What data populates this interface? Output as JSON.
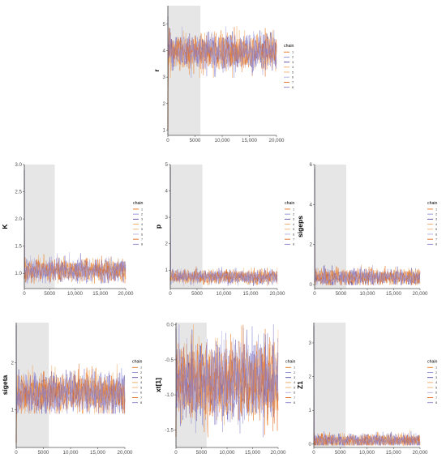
{
  "figure": {
    "legend_title": "chain",
    "legend_labels": [
      "1",
      "2",
      "3",
      "4",
      "5",
      "6",
      "7",
      "8"
    ],
    "chain_colors": [
      "#e8761b",
      "#8e8ed6",
      "#5a4aa8",
      "#f0a860",
      "#f2b271",
      "#b3aee0",
      "#e0671a",
      "#8b80c9"
    ],
    "warmup_shade_color": "#e6e6e6",
    "x_tick_labels": [
      "0",
      "5000",
      "10,000",
      "15,000",
      "20,000"
    ]
  },
  "chart_data": [
    {
      "type": "line",
      "ylabel": "r",
      "warmup_x_range": [
        0,
        6000
      ],
      "x_range": [
        0,
        20000
      ],
      "ylim": [
        0.8,
        5.7
      ],
      "y_ticks": [
        1,
        2,
        3,
        4,
        5
      ],
      "y_tick_labels": [
        "1",
        "2",
        "3",
        "4",
        "5"
      ],
      "series_center": 3.95,
      "series_band": [
        3.1,
        4.8
      ],
      "initial_spike": [
        1.0,
        5.3
      ],
      "grid": false,
      "legend": "right",
      "series": [
        {
          "name": "1"
        },
        {
          "name": "2"
        },
        {
          "name": "3"
        },
        {
          "name": "4"
        },
        {
          "name": "5"
        },
        {
          "name": "6"
        },
        {
          "name": "7"
        },
        {
          "name": "8"
        }
      ]
    },
    {
      "type": "line",
      "ylabel": "K",
      "warmup_x_range": [
        0,
        6000
      ],
      "x_range": [
        0,
        20000
      ],
      "ylim": [
        0.72,
        3.0
      ],
      "y_ticks": [
        1.0,
        1.5,
        2.0,
        2.5,
        3.0
      ],
      "y_tick_labels": [
        "1.0",
        "1.5",
        "2.0",
        "2.5",
        "3.0"
      ],
      "series_center": 1.05,
      "series_band": [
        0.85,
        1.35
      ],
      "initial_spike": [
        0.9,
        2.9
      ],
      "grid": false,
      "legend": "right",
      "series": [
        {
          "name": "1"
        },
        {
          "name": "2"
        },
        {
          "name": "3"
        },
        {
          "name": "4"
        },
        {
          "name": "5"
        },
        {
          "name": "6"
        },
        {
          "name": "7"
        },
        {
          "name": "8"
        }
      ]
    },
    {
      "type": "line",
      "ylabel": "p",
      "warmup_x_range": [
        0,
        6000
      ],
      "x_range": [
        0,
        20000
      ],
      "ylim": [
        0.3,
        5.0
      ],
      "y_ticks": [
        1,
        2,
        3,
        4,
        5
      ],
      "y_tick_labels": [
        "1",
        "2",
        "3",
        "4",
        "5"
      ],
      "series_center": 0.75,
      "series_band": [
        0.45,
        1.1
      ],
      "initial_spike": [
        0.6,
        4.9
      ],
      "grid": false,
      "legend": "right",
      "series": [
        {
          "name": "1"
        },
        {
          "name": "2"
        },
        {
          "name": "3"
        },
        {
          "name": "4"
        },
        {
          "name": "5"
        },
        {
          "name": "6"
        },
        {
          "name": "7"
        },
        {
          "name": "8"
        }
      ]
    },
    {
      "type": "line",
      "ylabel": "sigeps",
      "warmup_x_range": [
        0,
        6000
      ],
      "x_range": [
        0,
        20000
      ],
      "ylim": [
        -0.2,
        6.0
      ],
      "y_ticks": [
        0,
        2,
        4,
        6
      ],
      "y_tick_labels": [
        "0",
        "2",
        "4",
        "6"
      ],
      "series_center": 0.35,
      "series_band": [
        0.05,
        1.1
      ],
      "initial_spike": [
        0.1,
        5.8
      ],
      "grid": false,
      "legend": "right",
      "series": [
        {
          "name": "1"
        },
        {
          "name": "2"
        },
        {
          "name": "3"
        },
        {
          "name": "4"
        },
        {
          "name": "5"
        },
        {
          "name": "6"
        },
        {
          "name": "7"
        },
        {
          "name": "8"
        }
      ]
    },
    {
      "type": "line",
      "ylabel": "sigeta",
      "warmup_x_range": [
        0,
        6000
      ],
      "x_range": [
        0,
        20000
      ],
      "ylim": [
        0.2,
        2.85
      ],
      "y_ticks": [
        1,
        2
      ],
      "y_tick_labels": [
        "1",
        "2"
      ],
      "series_center": 1.35,
      "series_band": [
        1.0,
        2.1
      ],
      "initial_spike": [
        0.3,
        2.8
      ],
      "grid": false,
      "legend": "right",
      "series": [
        {
          "name": "1"
        },
        {
          "name": "2"
        },
        {
          "name": "3"
        },
        {
          "name": "4"
        },
        {
          "name": "5"
        },
        {
          "name": "6"
        },
        {
          "name": "7"
        },
        {
          "name": "8"
        }
      ]
    },
    {
      "type": "line",
      "ylabel": "xt[1]",
      "warmup_x_range": [
        0,
        6000
      ],
      "x_range": [
        0,
        20000
      ],
      "ylim": [
        -1.75,
        0.03
      ],
      "y_ticks": [
        -1.5,
        -1.0,
        -0.5,
        0.0
      ],
      "y_tick_labels": [
        "-1.5",
        "-1.0",
        "-0.5",
        "0.0"
      ],
      "series_center": -0.8,
      "series_band": [
        -1.5,
        -0.1
      ],
      "initial_spike": [
        -1.6,
        -0.05
      ],
      "grid": false,
      "legend": "right",
      "series": [
        {
          "name": "1"
        },
        {
          "name": "2"
        },
        {
          "name": "3"
        },
        {
          "name": "4"
        },
        {
          "name": "5"
        },
        {
          "name": "6"
        },
        {
          "name": "7"
        },
        {
          "name": "8"
        }
      ]
    },
    {
      "type": "line",
      "ylabel": "Z1",
      "warmup_x_range": [
        0,
        6000
      ],
      "x_range": [
        0,
        20000
      ],
      "ylim": [
        -0.1,
        3.6
      ],
      "y_ticks": [
        0,
        1,
        2,
        3
      ],
      "y_tick_labels": [
        "0",
        "1",
        "2",
        "3"
      ],
      "series_center": 0.1,
      "series_band": [
        0.0,
        0.5
      ],
      "initial_spike": [
        0.0,
        3.5
      ],
      "grid": false,
      "legend": "right",
      "series": [
        {
          "name": "1"
        },
        {
          "name": "2"
        },
        {
          "name": "3"
        },
        {
          "name": "4"
        },
        {
          "name": "5"
        },
        {
          "name": "6"
        },
        {
          "name": "7"
        },
        {
          "name": "8"
        }
      ]
    }
  ]
}
